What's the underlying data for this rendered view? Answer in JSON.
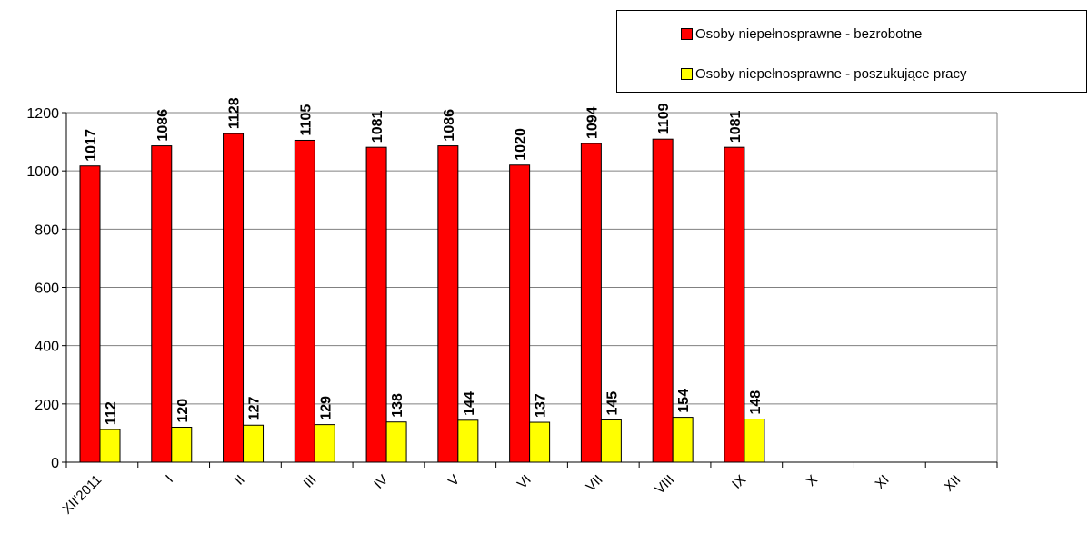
{
  "chart_data": {
    "type": "bar",
    "categories": [
      "XII'2011",
      "I",
      "II",
      "III",
      "IV",
      "V",
      "VI",
      "VII",
      "VIII",
      "IX",
      "X",
      "XI",
      "XII"
    ],
    "series": [
      {
        "name": "Osoby niepełnosprawne - bezrobotne",
        "color": "#ff0000",
        "values": [
          1017,
          1086,
          1128,
          1105,
          1081,
          1086,
          1020,
          1094,
          1109,
          1081,
          null,
          null,
          null
        ]
      },
      {
        "name": "Osoby niepełnosprawne - poszukujące pracy",
        "color": "#ffff00",
        "values": [
          112,
          120,
          127,
          129,
          138,
          144,
          137,
          145,
          154,
          148,
          null,
          null,
          null
        ]
      }
    ],
    "ylim": [
      0,
      1200
    ],
    "yticks": [
      0,
      200,
      400,
      600,
      800,
      1000,
      1200
    ],
    "grid": true,
    "legend": "top-right"
  }
}
